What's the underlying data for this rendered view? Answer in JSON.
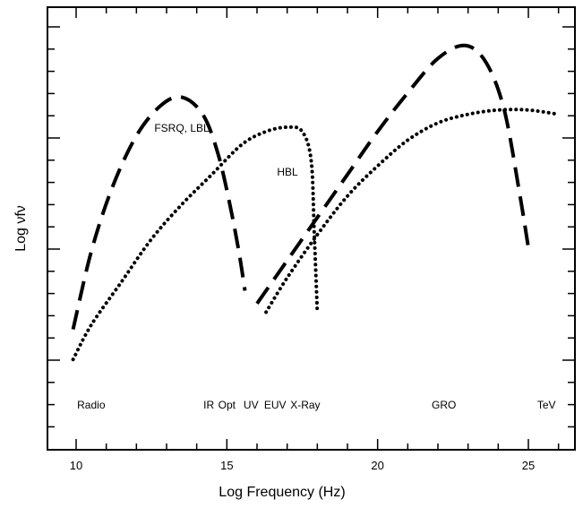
{
  "chart_data": {
    "type": "line",
    "xlabel": "Log Frequency (Hz)",
    "ylabel": "Log νfν",
    "xlim": [
      9,
      27
    ],
    "ylim": [
      0,
      1
    ],
    "x_ticks": [
      10,
      15,
      20,
      25
    ],
    "band_labels": [
      "Radio",
      "IR",
      "Opt",
      "UV",
      "EUV",
      "X-Ray",
      "GRO",
      "TeV"
    ],
    "band_positions": [
      10.5,
      14.4,
      15.0,
      15.8,
      16.6,
      17.6,
      22.2,
      25.6
    ],
    "series": [
      {
        "name": "FSRQ, LBL",
        "style": "dashed",
        "x": [
          9.9,
          10.5,
          11.2,
          12.0,
          12.8,
          13.5,
          14.2,
          14.7,
          15.1,
          15.4,
          15.6
        ],
        "y": [
          0.23,
          0.41,
          0.56,
          0.68,
          0.75,
          0.77,
          0.73,
          0.64,
          0.52,
          0.41,
          0.32
        ]
      },
      {
        "x": [
          16.0,
          17.0,
          18.0,
          19.0,
          20.0,
          21.0,
          22.0,
          22.9,
          23.6,
          24.2,
          24.7,
          25.0
        ],
        "y": [
          0.29,
          0.39,
          0.49,
          0.59,
          0.69,
          0.78,
          0.86,
          0.89,
          0.85,
          0.74,
          0.55,
          0.42
        ],
        "style": "dashed"
      },
      {
        "name": "HBL",
        "style": "dotted",
        "x": [
          9.9,
          10.5,
          11.5,
          12.5,
          13.5,
          14.5,
          15.5,
          16.3,
          17.0,
          17.5,
          17.8,
          17.9,
          18.0
        ],
        "y": [
          0.16,
          0.24,
          0.34,
          0.44,
          0.52,
          0.59,
          0.66,
          0.69,
          0.7,
          0.69,
          0.62,
          0.45,
          0.27
        ]
      },
      {
        "style": "dotted",
        "x": [
          16.3,
          17.0,
          18.0,
          19.0,
          20.0,
          21.0,
          22.0,
          23.0,
          24.0,
          25.0,
          26.0
        ],
        "y": [
          0.27,
          0.35,
          0.45,
          0.54,
          0.61,
          0.67,
          0.71,
          0.73,
          0.74,
          0.74,
          0.73
        ]
      }
    ]
  }
}
